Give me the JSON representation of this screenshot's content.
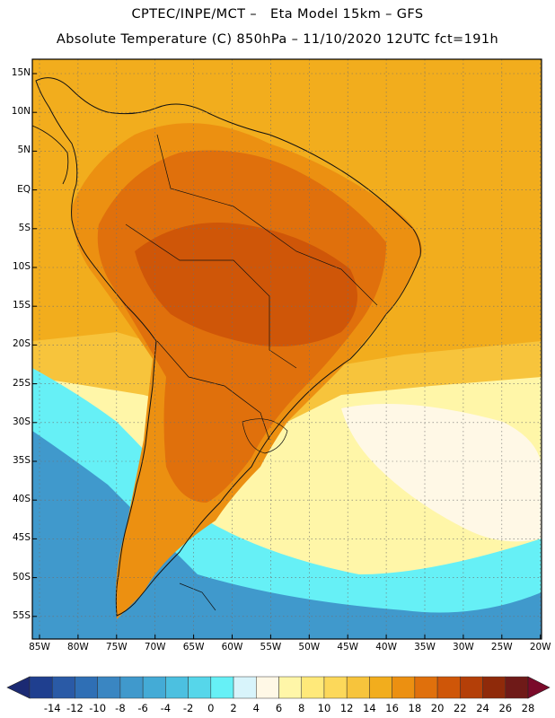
{
  "header": {
    "line1": "CPTEC/INPE/MCT –   Eta Model 15km – GFS",
    "line2": "Absolute Temperature (C) 850hPa – 11/10/2020 12UTC fct=191h"
  },
  "axes": {
    "lat_labels": [
      "15N",
      "10N",
      "5N",
      "EQ",
      "5S",
      "10S",
      "15S",
      "20S",
      "25S",
      "30S",
      "35S",
      "40S",
      "45S",
      "50S",
      "55S"
    ],
    "lon_labels": [
      "85W",
      "80W",
      "75W",
      "70W",
      "65W",
      "60W",
      "55W",
      "50W",
      "45W",
      "40W",
      "35W",
      "30W",
      "25W",
      "20W"
    ]
  },
  "colorbar": {
    "labels": [
      "-14",
      "-12",
      "-10",
      "-8",
      "-6",
      "-4",
      "-2",
      "0",
      "2",
      "4",
      "6",
      "8",
      "10",
      "12",
      "14",
      "16",
      "18",
      "20",
      "22",
      "24",
      "26",
      "28"
    ],
    "colors": [
      "#1f3f8f",
      "#2a5aa6",
      "#2f6fb5",
      "#3a86c2",
      "#4099cc",
      "#44abd6",
      "#4cc0e0",
      "#56d6ea",
      "#66f0f6",
      "#d8f4fb",
      "#fff8e6",
      "#fff6a8",
      "#ffe97a",
      "#fcd85a",
      "#f7c43c",
      "#f2ad1d",
      "#ec9011",
      "#e0700c",
      "#cf5608",
      "#b43f08",
      "#8f2a0a",
      "#6f1a18"
    ],
    "under_color": "#1b2a73",
    "over_color": "#7a0a2a"
  },
  "regions": {
    "ocean_warm": "#f2ad1d",
    "ocean_mid": "#f7c43c",
    "ocean_pale": "#fff6a8",
    "ocean_cream": "#fff8e6",
    "ocean_cyan": "#66f0f6",
    "ocean_cold": "#4099cc",
    "land_hot": "#cf5608",
    "land_warm": "#e0700c",
    "land_mid": "#ec9011"
  }
}
